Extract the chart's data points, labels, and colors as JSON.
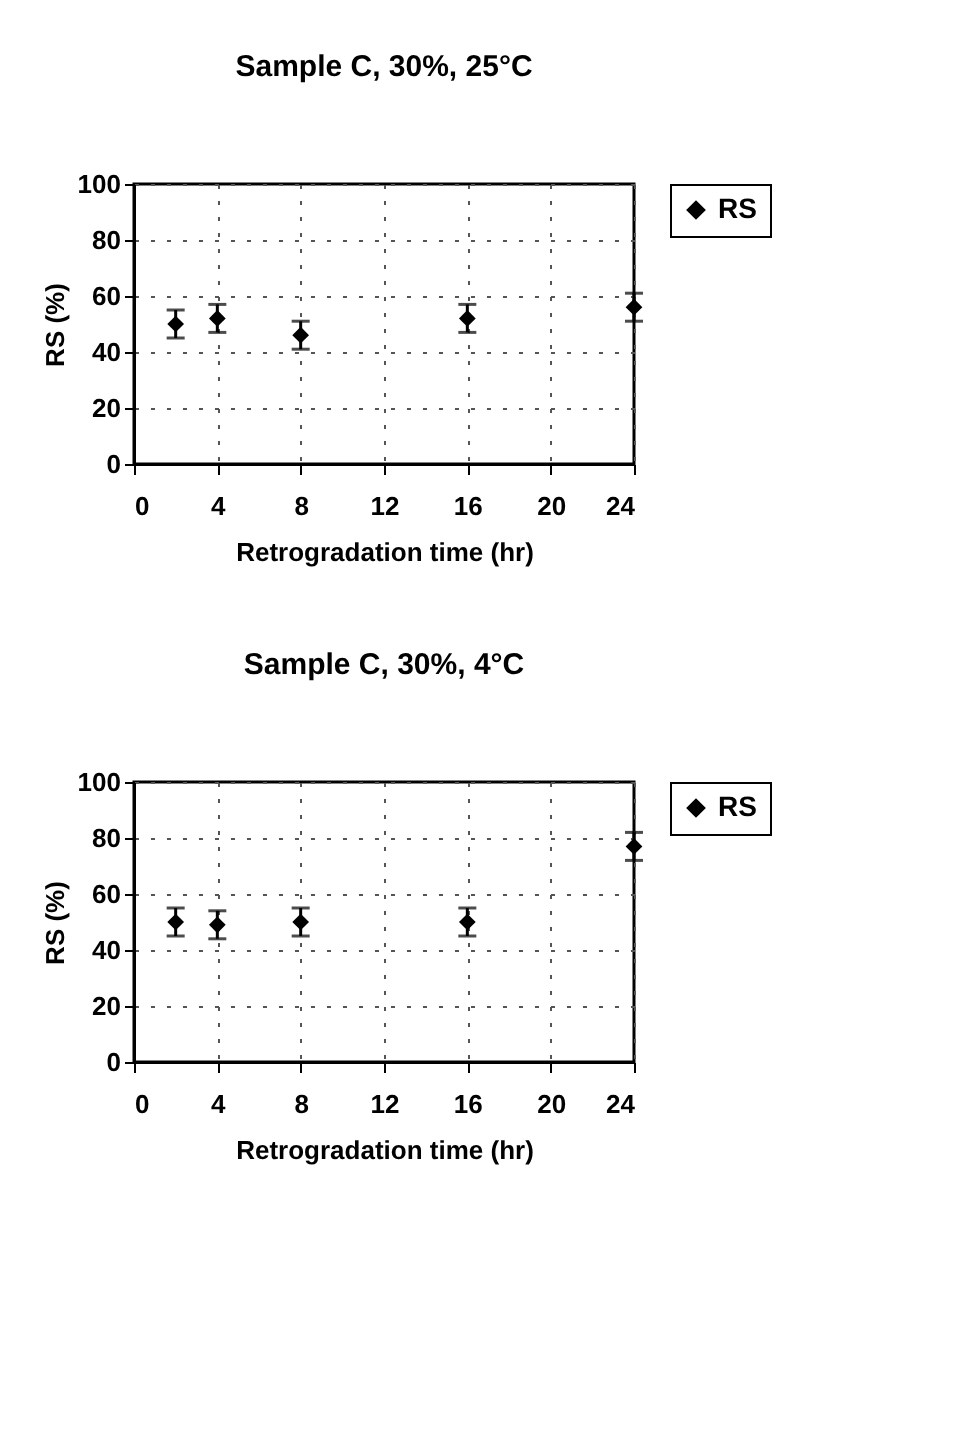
{
  "chart_data": [
    {
      "type": "scatter",
      "title": "Sample C, 30%, 25°C",
      "xlabel": "Retrogradation time (hr)",
      "ylabel": "RS (%)",
      "x": [
        2,
        4,
        8,
        16,
        24
      ],
      "series": [
        {
          "name": "RS",
          "color": "#000000",
          "values": [
            50,
            52,
            46,
            52,
            56
          ],
          "errors": [
            5,
            5,
            5,
            5,
            5
          ]
        }
      ],
      "xlim": [
        0,
        24
      ],
      "xticks": [
        0,
        4,
        8,
        12,
        16,
        20,
        24
      ],
      "ylim": [
        0,
        100
      ],
      "yticks": [
        0,
        20,
        40,
        60,
        80,
        100
      ],
      "grid": true,
      "legend": "right",
      "marker": "diamond"
    },
    {
      "type": "scatter",
      "title": "Sample C, 30%, 4°C",
      "xlabel": "Retrogradation time (hr)",
      "ylabel": "RS (%)",
      "x": [
        2,
        4,
        8,
        16,
        24
      ],
      "series": [
        {
          "name": "RS",
          "color": "#000000",
          "values": [
            50,
            49,
            50,
            50,
            77
          ],
          "errors": [
            5,
            5,
            5,
            5,
            5
          ]
        }
      ],
      "xlim": [
        0,
        24
      ],
      "xticks": [
        0,
        4,
        8,
        12,
        16,
        20,
        24
      ],
      "ylim": [
        0,
        100
      ],
      "yticks": [
        0,
        20,
        40,
        60,
        80,
        100
      ],
      "grid": true,
      "legend": "right",
      "marker": "diamond"
    }
  ]
}
